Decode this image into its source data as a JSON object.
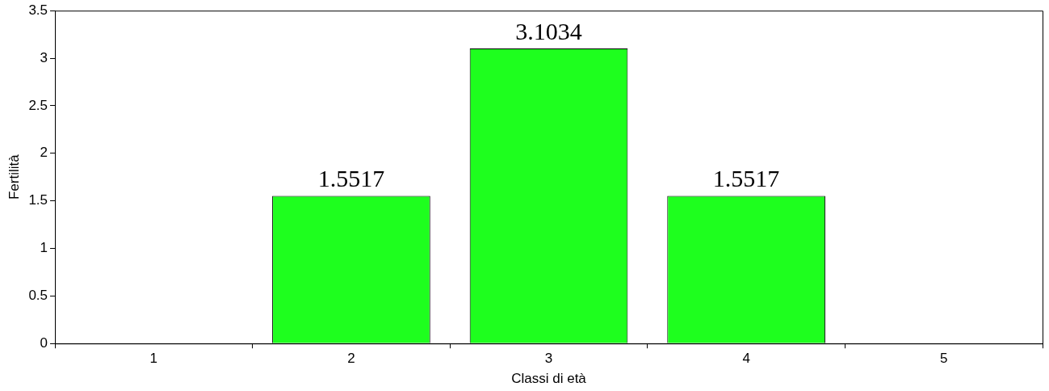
{
  "chart_data": {
    "type": "bar",
    "xlabel": "Classi di età",
    "ylabel": "Fertilità",
    "categories": [
      "1",
      "2",
      "3",
      "4",
      "5"
    ],
    "values": [
      0,
      1.5517,
      3.1034,
      1.5517,
      0
    ],
    "value_labels": [
      null,
      "1.5517",
      "3.1034",
      "1.5517",
      null
    ],
    "color": "#1eff1e",
    "ylim": [
      0,
      3.5
    ],
    "yticks": [
      0,
      0.5,
      1,
      1.5,
      2,
      2.5,
      3,
      3.5
    ]
  }
}
